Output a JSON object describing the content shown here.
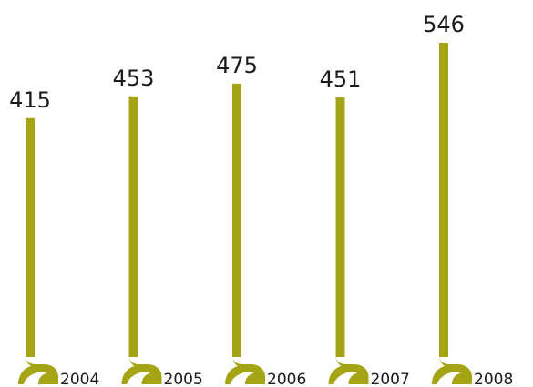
{
  "chart_data": {
    "type": "bar",
    "categories": [
      "2004",
      "2005",
      "2006",
      "2007",
      "2008"
    ],
    "values": [
      415,
      453,
      475,
      451,
      546
    ],
    "title": "",
    "xlabel": "",
    "ylabel": "",
    "ylim": [
      0,
      546
    ],
    "grid": false,
    "legend": "none"
  },
  "colors": {
    "bar": "#a5a414",
    "text": "#1a1a1a",
    "background": "#ffffff"
  }
}
